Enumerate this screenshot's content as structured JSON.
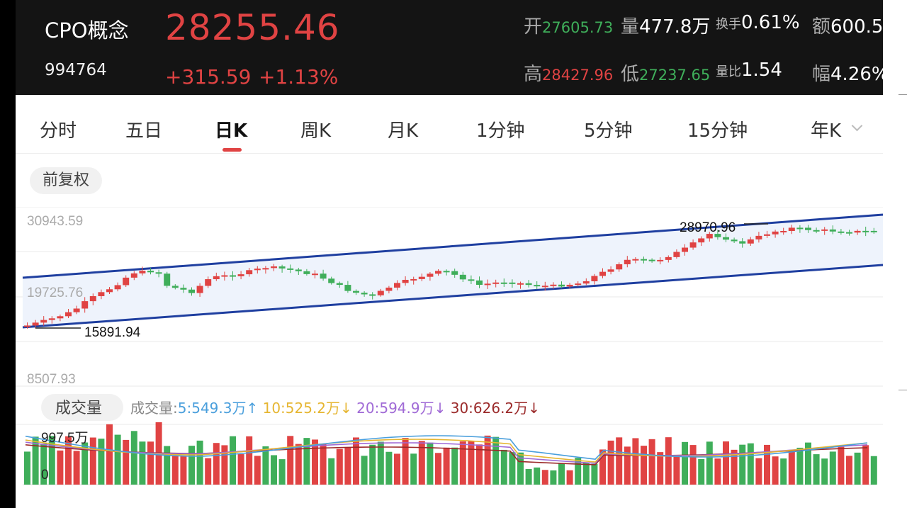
{
  "header": {
    "title": "CPO概念",
    "code": "994764",
    "price": "28255.46",
    "change": "+315.59",
    "change_pct": "+1.13%",
    "stats": {
      "open_label": "开",
      "open_value": "27605.73",
      "volume_label": "量",
      "volume_value": "477.8万",
      "turnover_label": "换手",
      "turnover_value": "0.61%",
      "amount_label": "额",
      "amount_value": "600.5",
      "high_label": "高",
      "high_value": "28427.96",
      "low_label": "低",
      "low_value": "27237.65",
      "vol_ratio_label": "量比",
      "vol_ratio_value": "1.54",
      "amplitude_label": "幅",
      "amplitude_value": "4.26%"
    }
  },
  "tabs": [
    "分时",
    "五日",
    "日K",
    "周K",
    "月K",
    "1分钟",
    "5分钟",
    "15分钟",
    "年K"
  ],
  "active_tab": "日K",
  "adjust_button": "前复权",
  "kline": {
    "y_labels": [
      "30943.59",
      "19725.76",
      "8507.93"
    ],
    "y_range": [
      8507.93,
      30943.59
    ],
    "max_label": "28970.96",
    "min_label": "15891.94",
    "colors": {
      "up": "#e04343",
      "down": "#3fae5a",
      "channel": "#1f3fa0",
      "channel_fill": "#eef3fc"
    }
  },
  "volume": {
    "button": "成交量",
    "legend_label": "成交量:",
    "ma5": "5:549.3万",
    "ma10": "10:525.2万",
    "ma20": "20:594.9万",
    "ma30": "30:626.2万",
    "ma5_arrow": "↑",
    "ma10_arrow": "↓",
    "ma20_arrow": "↓",
    "ma30_arrow": "↓",
    "max_label": "997.5万",
    "zero_label": "0",
    "colors": {
      "ma5": "#4a9fdc",
      "ma10": "#e6b632",
      "ma20": "#a06ad6",
      "ma30": "#9b2a2a"
    }
  }
}
